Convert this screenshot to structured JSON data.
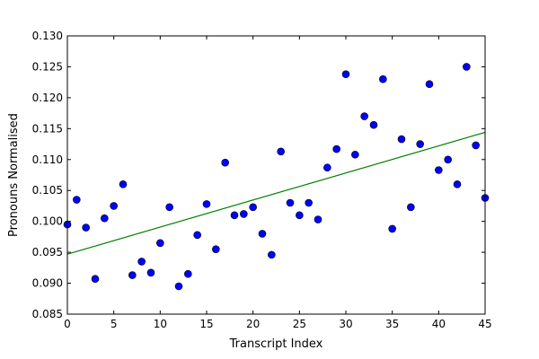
{
  "chart_data": {
    "type": "scatter",
    "xlabel": "Transcript Index",
    "ylabel": "Pronouns Normalised",
    "xlim": [
      0,
      45
    ],
    "ylim": [
      0.085,
      0.13
    ],
    "x_ticks": [
      0,
      5,
      10,
      15,
      20,
      25,
      30,
      35,
      40,
      45
    ],
    "x_tick_labels": [
      "0",
      "5",
      "10",
      "15",
      "20",
      "25",
      "30",
      "35",
      "40",
      "45"
    ],
    "y_ticks": [
      0.085,
      0.09,
      0.095,
      0.1,
      0.105,
      0.11,
      0.115,
      0.12,
      0.125,
      0.13
    ],
    "y_tick_labels": [
      "0.085",
      "0.090",
      "0.095",
      "0.100",
      "0.105",
      "0.110",
      "0.115",
      "0.120",
      "0.125",
      "0.130"
    ],
    "grid": false,
    "series": [
      {
        "type": "scatter",
        "color": "#0000ff",
        "x": [
          0,
          1,
          2,
          3,
          4,
          5,
          6,
          7,
          8,
          9,
          10,
          11,
          12,
          13,
          14,
          15,
          16,
          17,
          18,
          19,
          20,
          21,
          22,
          23,
          24,
          25,
          26,
          27,
          28,
          29,
          30,
          31,
          32,
          33,
          34,
          35,
          36,
          37,
          38,
          39,
          40,
          41,
          42,
          43,
          44,
          45
        ],
        "y": [
          0.0995,
          0.1035,
          0.099,
          0.0907,
          0.1005,
          0.1025,
          0.106,
          0.0913,
          0.0935,
          0.0917,
          0.0965,
          0.1023,
          0.0895,
          0.0915,
          0.0978,
          0.1028,
          0.0955,
          0.1095,
          0.101,
          0.1012,
          0.1023,
          0.098,
          0.0946,
          0.1113,
          0.103,
          0.101,
          0.103,
          0.1003,
          0.1087,
          0.1117,
          0.1238,
          0.1108,
          0.117,
          0.1156,
          0.123,
          0.0988,
          0.1133,
          0.1023,
          0.1125,
          0.1222,
          0.1083,
          0.11,
          0.106,
          0.125,
          0.1123,
          0.1038
        ]
      },
      {
        "type": "line",
        "color": "#008000",
        "x": [
          0,
          45
        ],
        "y": [
          0.0947,
          0.1144
        ]
      }
    ]
  }
}
